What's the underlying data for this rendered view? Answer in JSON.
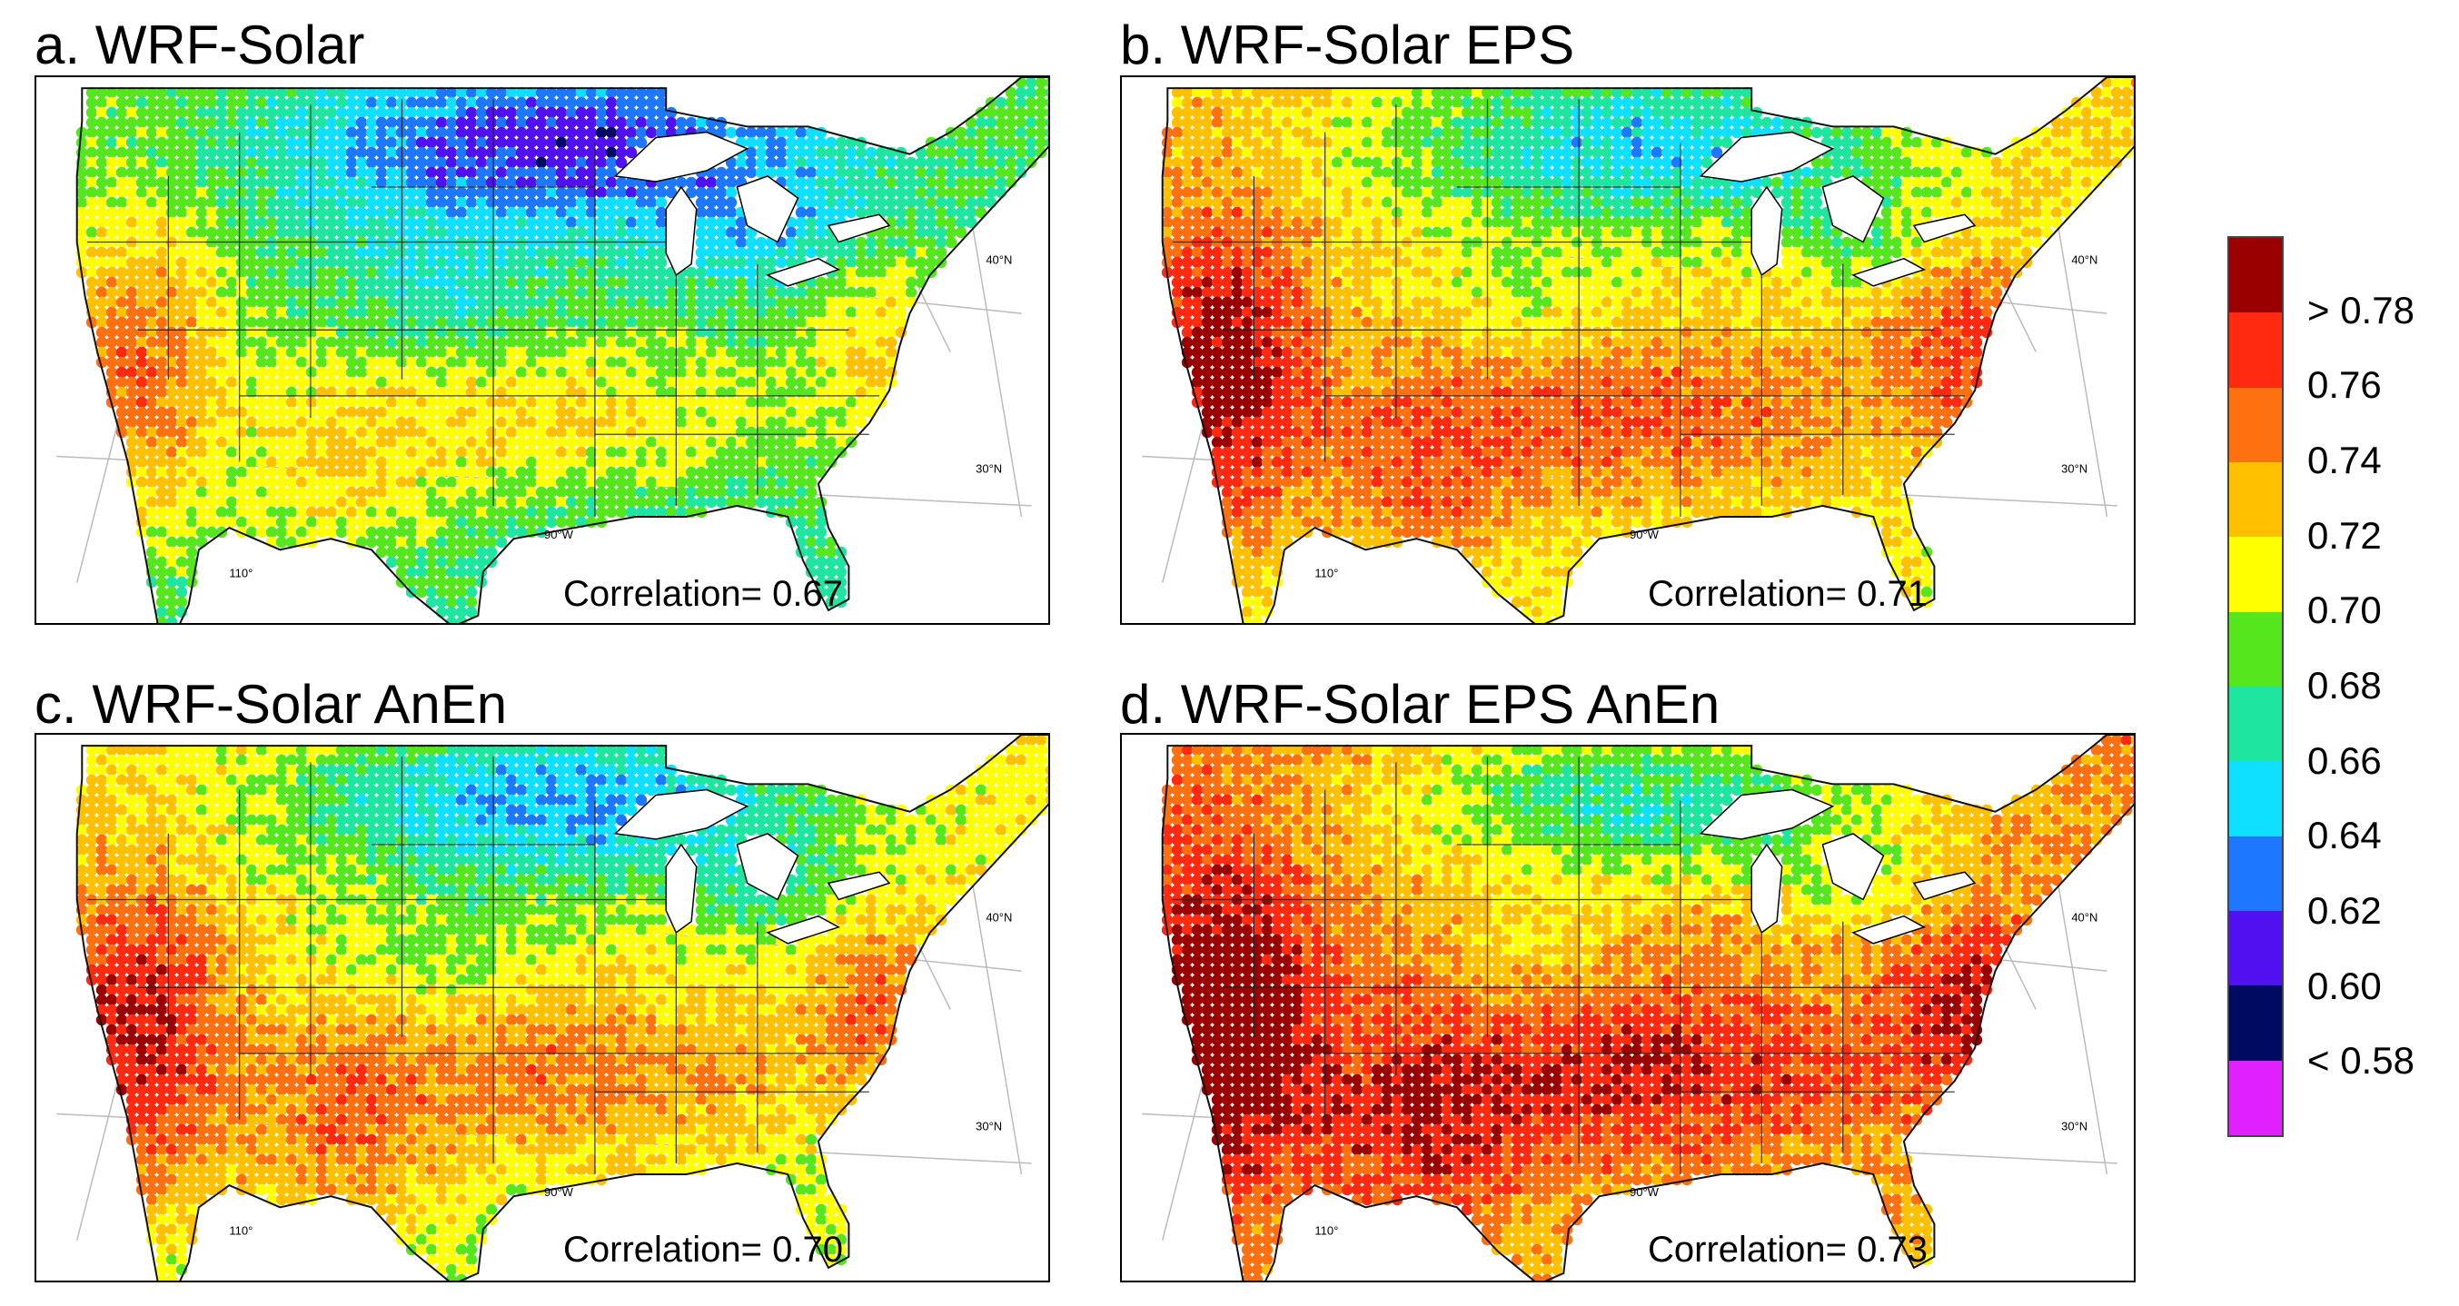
{
  "chart_data": [
    {
      "type": "heatmap",
      "title": "a. WRF-Solar",
      "correlation_label": "Correlation= ",
      "correlation": "0.67",
      "level": 0.67
    },
    {
      "type": "heatmap",
      "title": "b. WRF-Solar EPS",
      "correlation_label": "Correlation= ",
      "correlation": "0.71",
      "level": 0.71
    },
    {
      "type": "heatmap",
      "title": "c. WRF-Solar AnEn",
      "correlation_label": "Correlation= ",
      "correlation": "0.70",
      "level": 0.7
    },
    {
      "type": "heatmap",
      "title": "d. WRF-Solar EPS AnEn",
      "correlation_label": "Correlation= ",
      "correlation": "0.73",
      "level": 0.73
    }
  ],
  "map_labels": {
    "lat40": "40°N",
    "lat30": "30°N",
    "lon90": "90°W",
    "lon110": "110°"
  },
  "colorbar": {
    "colors": [
      "#9b0000",
      "#ff2a10",
      "#ff7010",
      "#ffc000",
      "#ffff00",
      "#55e61e",
      "#1ee6a0",
      "#10e0ff",
      "#1e78ff",
      "#5010f0",
      "#000a60",
      "#e020ff"
    ],
    "labels": [
      "> 0.78",
      "0.76",
      "0.74",
      "0.72",
      "0.70",
      "0.68",
      "0.66",
      "0.64",
      "0.62",
      "0.60",
      "< 0.58"
    ]
  }
}
